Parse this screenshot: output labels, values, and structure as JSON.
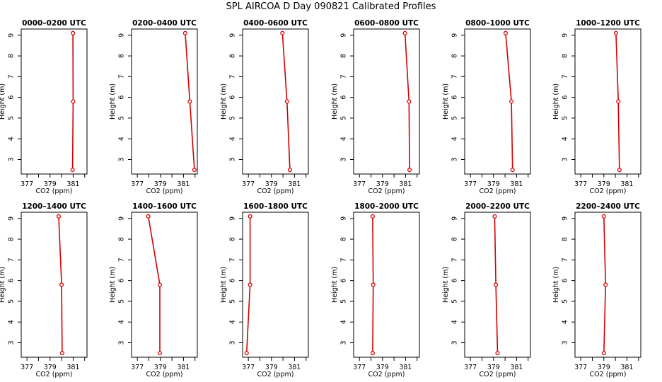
{
  "figure": {
    "title": "SPL AIRCOA D  Day 090821  Calibrated Profiles",
    "xlabel": "CO2 (ppm)",
    "ylabel": "Height (m)",
    "colors": {
      "series": "#d40000",
      "axis": "#000000",
      "background": "#ffffff"
    }
  },
  "chart_data": [
    {
      "type": "line",
      "title": "0000–0200 UTC",
      "xlabel": "CO2 (ppm)",
      "ylabel": "Height (m)",
      "xlim": [
        376.5,
        382.2
      ],
      "ylim": [
        2.3,
        9.3
      ],
      "xticks": [
        377,
        378,
        379,
        380,
        381,
        382
      ],
      "xticklabels": [
        "377",
        "",
        "379",
        "",
        "381",
        ""
      ],
      "yticks": [
        3,
        4,
        5,
        6,
        7,
        8,
        9
      ],
      "grid": false,
      "points": [
        {
          "x": 380.95,
          "y": 2.5
        },
        {
          "x": 381.0,
          "y": 5.8
        },
        {
          "x": 380.98,
          "y": 9.1
        }
      ]
    },
    {
      "type": "line",
      "title": "0200–0400 UTC",
      "xlabel": "CO2 (ppm)",
      "ylabel": "Height (m)",
      "xlim": [
        376.5,
        382.2
      ],
      "ylim": [
        2.3,
        9.3
      ],
      "xticks": [
        377,
        378,
        379,
        380,
        381,
        382
      ],
      "xticklabels": [
        "377",
        "",
        "379",
        "",
        "381",
        ""
      ],
      "yticks": [
        3,
        4,
        5,
        6,
        7,
        8,
        9
      ],
      "grid": false,
      "points": [
        {
          "x": 381.95,
          "y": 2.5
        },
        {
          "x": 381.55,
          "y": 5.8
        },
        {
          "x": 381.15,
          "y": 9.1
        }
      ]
    },
    {
      "type": "line",
      "title": "0400–0600 UTC",
      "xlabel": "CO2 (ppm)",
      "ylabel": "Height (m)",
      "xlim": [
        376.5,
        382.2
      ],
      "ylim": [
        2.3,
        9.3
      ],
      "xticks": [
        377,
        378,
        379,
        380,
        381,
        382
      ],
      "xticklabels": [
        "377",
        "",
        "379",
        "",
        "381",
        ""
      ],
      "yticks": [
        3,
        4,
        5,
        6,
        7,
        8,
        9
      ],
      "grid": false,
      "points": [
        {
          "x": 380.6,
          "y": 2.5
        },
        {
          "x": 380.35,
          "y": 5.8
        },
        {
          "x": 379.95,
          "y": 9.1
        }
      ]
    },
    {
      "type": "line",
      "title": "0600–0800 UTC",
      "xlabel": "CO2 (ppm)",
      "ylabel": "Height (m)",
      "xlim": [
        376.5,
        382.2
      ],
      "ylim": [
        2.3,
        9.3
      ],
      "xticks": [
        377,
        378,
        379,
        380,
        381,
        382
      ],
      "xticklabels": [
        "377",
        "",
        "379",
        "",
        "381",
        ""
      ],
      "yticks": [
        3,
        4,
        5,
        6,
        7,
        8,
        9
      ],
      "grid": false,
      "points": [
        {
          "x": 381.35,
          "y": 2.5
        },
        {
          "x": 381.3,
          "y": 5.8
        },
        {
          "x": 380.95,
          "y": 9.1
        }
      ]
    },
    {
      "type": "line",
      "title": "0800–1000 UTC",
      "xlabel": "CO2 (ppm)",
      "ylabel": "Height (m)",
      "xlim": [
        376.5,
        382.2
      ],
      "ylim": [
        2.3,
        9.3
      ],
      "xticks": [
        377,
        378,
        379,
        380,
        381,
        382
      ],
      "xticklabels": [
        "377",
        "",
        "379",
        "",
        "381",
        ""
      ],
      "yticks": [
        3,
        4,
        5,
        6,
        7,
        8,
        9
      ],
      "grid": false,
      "points": [
        {
          "x": 380.65,
          "y": 2.5
        },
        {
          "x": 380.55,
          "y": 5.8
        },
        {
          "x": 380.05,
          "y": 9.1
        }
      ]
    },
    {
      "type": "line",
      "title": "1000–1200 UTC",
      "xlabel": "CO2 (ppm)",
      "ylabel": "Height (m)",
      "xlim": [
        376.5,
        382.2
      ],
      "ylim": [
        2.3,
        9.3
      ],
      "xticks": [
        377,
        378,
        379,
        380,
        381,
        382
      ],
      "xticklabels": [
        "377",
        "",
        "379",
        "",
        "381",
        ""
      ],
      "yticks": [
        3,
        4,
        5,
        6,
        7,
        8,
        9
      ],
      "grid": false,
      "points": [
        {
          "x": 380.35,
          "y": 2.5
        },
        {
          "x": 380.25,
          "y": 5.8
        },
        {
          "x": 380.05,
          "y": 9.1
        }
      ]
    },
    {
      "type": "line",
      "title": "1200–1400 UTC",
      "xlabel": "CO2 (ppm)",
      "ylabel": "Height (m)",
      "xlim": [
        376.5,
        382.2
      ],
      "ylim": [
        2.3,
        9.3
      ],
      "xticks": [
        377,
        378,
        379,
        380,
        381,
        382
      ],
      "xticklabels": [
        "377",
        "",
        "379",
        "",
        "381",
        ""
      ],
      "yticks": [
        3,
        4,
        5,
        6,
        7,
        8,
        9
      ],
      "grid": false,
      "points": [
        {
          "x": 380.05,
          "y": 2.5
        },
        {
          "x": 380.0,
          "y": 5.8
        },
        {
          "x": 379.75,
          "y": 9.1
        }
      ]
    },
    {
      "type": "line",
      "title": "1400–1600 UTC",
      "xlabel": "CO2 (ppm)",
      "ylabel": "Height (m)",
      "xlim": [
        376.5,
        382.2
      ],
      "ylim": [
        2.3,
        9.3
      ],
      "xticks": [
        377,
        378,
        379,
        380,
        381,
        382
      ],
      "xticklabels": [
        "377",
        "",
        "379",
        "",
        "381",
        ""
      ],
      "yticks": [
        3,
        4,
        5,
        6,
        7,
        8,
        9
      ],
      "grid": false,
      "points": [
        {
          "x": 378.95,
          "y": 2.5
        },
        {
          "x": 378.95,
          "y": 5.8
        },
        {
          "x": 377.95,
          "y": 9.1
        }
      ]
    },
    {
      "type": "line",
      "title": "1600–1800 UTC",
      "xlabel": "CO2 (ppm)",
      "ylabel": "Height (m)",
      "xlim": [
        376.5,
        382.2
      ],
      "ylim": [
        2.3,
        9.3
      ],
      "xticks": [
        377,
        378,
        379,
        380,
        381,
        382
      ],
      "xticklabels": [
        "377",
        "",
        "379",
        "",
        "381",
        ""
      ],
      "yticks": [
        3,
        4,
        5,
        6,
        7,
        8,
        9
      ],
      "grid": false,
      "points": [
        {
          "x": 376.85,
          "y": 2.5
        },
        {
          "x": 377.15,
          "y": 5.8
        },
        {
          "x": 377.15,
          "y": 9.1
        }
      ]
    },
    {
      "type": "line",
      "title": "1800–2000 UTC",
      "xlabel": "CO2 (ppm)",
      "ylabel": "Height (m)",
      "xlim": [
        376.5,
        382.2
      ],
      "ylim": [
        2.3,
        9.3
      ],
      "xticks": [
        377,
        378,
        379,
        380,
        381,
        382
      ],
      "xticklabels": [
        "377",
        "",
        "379",
        "",
        "381",
        ""
      ],
      "yticks": [
        3,
        4,
        5,
        6,
        7,
        8,
        9
      ],
      "grid": false,
      "points": [
        {
          "x": 378.15,
          "y": 2.5
        },
        {
          "x": 378.2,
          "y": 5.8
        },
        {
          "x": 378.15,
          "y": 9.1
        }
      ]
    },
    {
      "type": "line",
      "title": "2000–2200 UTC",
      "xlabel": "CO2 (ppm)",
      "ylabel": "Height (m)",
      "xlim": [
        376.5,
        382.2
      ],
      "ylim": [
        2.3,
        9.3
      ],
      "xticks": [
        377,
        378,
        379,
        380,
        381,
        382
      ],
      "xticklabels": [
        "377",
        "",
        "379",
        "",
        "381",
        ""
      ],
      "yticks": [
        3,
        4,
        5,
        6,
        7,
        8,
        9
      ],
      "grid": false,
      "points": [
        {
          "x": 379.35,
          "y": 2.5
        },
        {
          "x": 379.2,
          "y": 5.8
        },
        {
          "x": 379.1,
          "y": 9.1
        }
      ]
    },
    {
      "type": "line",
      "title": "2200–2400 UTC",
      "xlabel": "CO2 (ppm)",
      "ylabel": "Height (m)",
      "xlim": [
        376.5,
        382.2
      ],
      "ylim": [
        2.3,
        9.3
      ],
      "xticks": [
        377,
        378,
        379,
        380,
        381,
        382
      ],
      "xticklabels": [
        "377",
        "",
        "379",
        "",
        "381",
        ""
      ],
      "yticks": [
        3,
        4,
        5,
        6,
        7,
        8,
        9
      ],
      "grid": false,
      "points": [
        {
          "x": 379.0,
          "y": 2.5
        },
        {
          "x": 379.15,
          "y": 5.8
        },
        {
          "x": 379.0,
          "y": 9.1
        }
      ]
    }
  ]
}
